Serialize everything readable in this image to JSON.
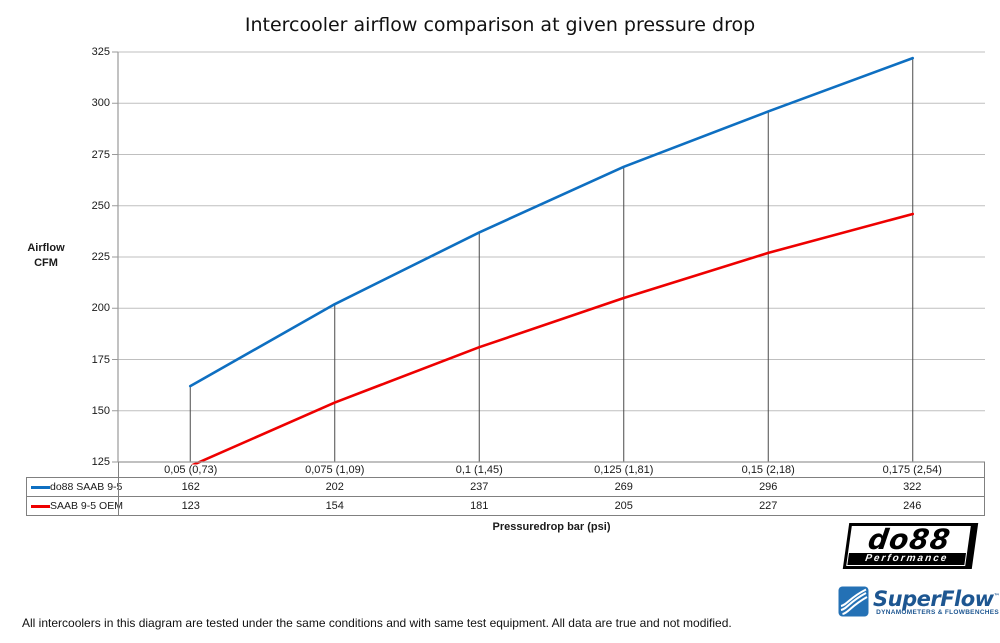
{
  "title": "Intercooler airflow comparison at given pressure drop",
  "chart_data": {
    "type": "line",
    "categories": [
      "0,05 (0,73)",
      "0,075 (1,09)",
      "0,1 (1,45)",
      "0,125 (1,81)",
      "0,15 (2,18)",
      "0,175 (2,54)"
    ],
    "series": [
      {
        "name": "do88 SAAB 9-5",
        "color": "#0E6FC1",
        "values": [
          162,
          202,
          237,
          269,
          296,
          322
        ]
      },
      {
        "name": "SAAB 9-5 OEM",
        "color": "#EE0000",
        "values": [
          123,
          154,
          181,
          205,
          227,
          246
        ]
      }
    ],
    "ylabel_lines": [
      "Airflow",
      "CFM"
    ],
    "xlabel": "Pressuredrop bar (psi)",
    "ylim": [
      125,
      325
    ],
    "yticks": [
      325,
      300,
      275,
      250,
      225,
      200,
      175,
      150,
      125
    ],
    "grid": true,
    "drop_lines": true,
    "legend_position": "table-left"
  },
  "colors": {
    "grid": "#BFBFBF",
    "axis": "#9A9A9A",
    "drop_line": "#4A4A4A",
    "table_border": "#808080"
  },
  "footer": {
    "note": "All intercoolers in this diagram are tested under the same conditions and with same test equipment. All data are true and not modified."
  },
  "logos": {
    "do88": {
      "name": "do88",
      "subtext": "Performance"
    },
    "superflow": {
      "name": "SuperFlow",
      "tm": "™",
      "subtext": "DYNAMOMETERS & FLOWBENCHES"
    }
  }
}
